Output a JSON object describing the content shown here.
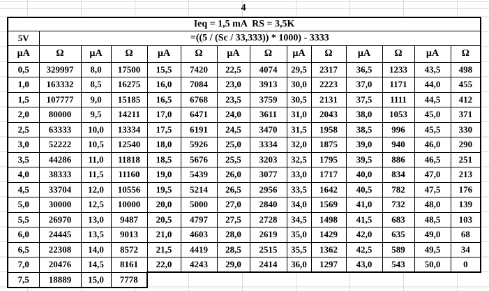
{
  "sheet": {
    "title": "4",
    "equation": "Ieq = 1,5 mA  RS = 3,5K",
    "voltage": "5V",
    "formula": "=((5 / (Sc / 33,333)) * 1000) - 3333"
  },
  "table": {
    "column_headers": [
      "µA",
      "Ω",
      "µA",
      "Ω",
      "µA",
      "Ω",
      "µA",
      "Ω",
      "µA",
      "Ω",
      "µA",
      "Ω",
      "µA",
      "Ω"
    ],
    "rows": [
      [
        "0,5",
        "329997",
        "8,0",
        "17500",
        "15,5",
        "7420",
        "22,5",
        "4074",
        "29,5",
        "2317",
        "36,5",
        "1233",
        "43,5",
        "498"
      ],
      [
        "1,0",
        "163332",
        "8,5",
        "16275",
        "16,0",
        "7084",
        "23,0",
        "3913",
        "30,0",
        "2223",
        "37,0",
        "1171",
        "44,0",
        "455"
      ],
      [
        "1,5",
        "107777",
        "9,0",
        "15185",
        "16,5",
        "6768",
        "23,5",
        "3759",
        "30,5",
        "2131",
        "37,5",
        "1111",
        "44,5",
        "412"
      ],
      [
        "2,0",
        "80000",
        "9,5",
        "14211",
        "17,0",
        "6471",
        "24,0",
        "3611",
        "31,0",
        "2043",
        "38,0",
        "1053",
        "45,0",
        "371"
      ],
      [
        "2,5",
        "63333",
        "10,0",
        "13334",
        "17,5",
        "6191",
        "24,5",
        "3470",
        "31,5",
        "1958",
        "38,5",
        "996",
        "45,5",
        "330"
      ],
      [
        "3,0",
        "52222",
        "10,5",
        "12540",
        "18,0",
        "5926",
        "25,0",
        "3334",
        "32,0",
        "1875",
        "39,0",
        "940",
        "46,0",
        "290"
      ],
      [
        "3,5",
        "44286",
        "11,0",
        "11818",
        "18,5",
        "5676",
        "25,5",
        "3203",
        "32,5",
        "1795",
        "39,5",
        "886",
        "46,5",
        "251"
      ],
      [
        "4,0",
        "38333",
        "11,5",
        "11160",
        "19,0",
        "5439",
        "26,0",
        "3077",
        "33,0",
        "1717",
        "40,0",
        "834",
        "47,0",
        "213"
      ],
      [
        "4,5",
        "33704",
        "12,0",
        "10556",
        "19,5",
        "5214",
        "26,5",
        "2956",
        "33,5",
        "1642",
        "40,5",
        "782",
        "47,5",
        "176"
      ],
      [
        "5,0",
        "30000",
        "12,5",
        "10000",
        "20,0",
        "5000",
        "27,0",
        "2840",
        "34,0",
        "1569",
        "41,0",
        "732",
        "48,0",
        "139"
      ],
      [
        "5,5",
        "26970",
        "13,0",
        "9487",
        "20,5",
        "4797",
        "27,5",
        "2728",
        "34,5",
        "1498",
        "41,5",
        "683",
        "48,5",
        "103"
      ],
      [
        "6,0",
        "24445",
        "13,5",
        "9013",
        "21,0",
        "4603",
        "28,0",
        "2619",
        "35,0",
        "1429",
        "42,0",
        "635",
        "49,0",
        "68"
      ],
      [
        "6,5",
        "22308",
        "14,0",
        "8572",
        "21,5",
        "4419",
        "28,5",
        "2515",
        "35,5",
        "1362",
        "42,5",
        "589",
        "49,5",
        "34"
      ],
      [
        "7,0",
        "20476",
        "14,5",
        "8161",
        "22,0",
        "4243",
        "29,0",
        "2414",
        "36,0",
        "1297",
        "43,0",
        "543",
        "50,0",
        "0"
      ],
      [
        "7,5",
        "18889",
        "15,0",
        "7778"
      ]
    ]
  },
  "colors": {
    "text": "#000000",
    "cell_border": "#000000",
    "cell_background": "#ffffff",
    "sheet_gridline": "#d9d9d9"
  }
}
